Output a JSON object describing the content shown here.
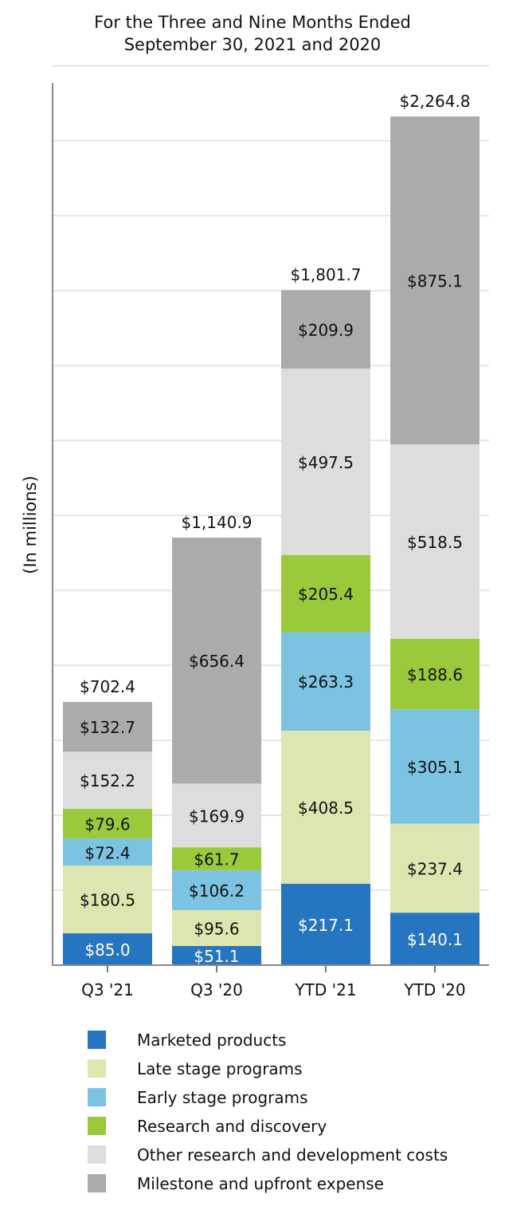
{
  "chart_data": {
    "type": "bar",
    "stacked": true,
    "title": "For the Three and Nine Months Ended\nSeptember 30, 2021 and 2020",
    "ylabel": "(In millions)",
    "categories": [
      "Q3 '21",
      "Q3 '20",
      "YTD '21",
      "YTD '20"
    ],
    "totals": [
      702.4,
      1140.9,
      1801.7,
      2264.8
    ],
    "total_labels": [
      "$702.4",
      "$1,140.9",
      "$1,801.7",
      "$2,264.8"
    ],
    "ylim": [
      0,
      2400
    ],
    "grid": true,
    "legend_position": "bottom",
    "series": [
      {
        "name": "Marketed products",
        "color": "#2675C0",
        "text_color": "#ffffff",
        "values": [
          85.0,
          51.1,
          217.1,
          140.1
        ],
        "labels": [
          "$85.0",
          "$51.1",
          "$217.1",
          "$140.1"
        ]
      },
      {
        "name": "Late stage programs",
        "color": "#DDE6B0",
        "text_color": "#111111",
        "values": [
          180.5,
          95.6,
          408.5,
          237.4
        ],
        "labels": [
          "$180.5",
          "$95.6",
          "$408.5",
          "$237.4"
        ]
      },
      {
        "name": "Early stage programs",
        "color": "#7CC3E1",
        "text_color": "#111111",
        "values": [
          72.4,
          106.2,
          263.3,
          305.1
        ],
        "labels": [
          "$72.4",
          "$106.2",
          "$263.3",
          "$305.1"
        ]
      },
      {
        "name": "Research and discovery",
        "color": "#9ACA3C",
        "text_color": "#111111",
        "values": [
          79.6,
          61.7,
          205.4,
          188.6
        ],
        "labels": [
          "$79.6",
          "$61.7",
          "$205.4",
          "$188.6"
        ]
      },
      {
        "name": "Other research and development costs",
        "color": "#DDDDDD",
        "text_color": "#111111",
        "values": [
          152.2,
          169.9,
          497.5,
          518.5
        ],
        "labels": [
          "$152.2",
          "$169.9",
          "$497.5",
          "$518.5"
        ]
      },
      {
        "name": "Milestone and upfront expense",
        "color": "#ABABAB",
        "text_color": "#111111",
        "values": [
          132.7,
          656.4,
          209.9,
          875.1
        ],
        "labels": [
          "$132.7",
          "$656.4",
          "$209.9",
          "$875.1"
        ]
      }
    ]
  }
}
